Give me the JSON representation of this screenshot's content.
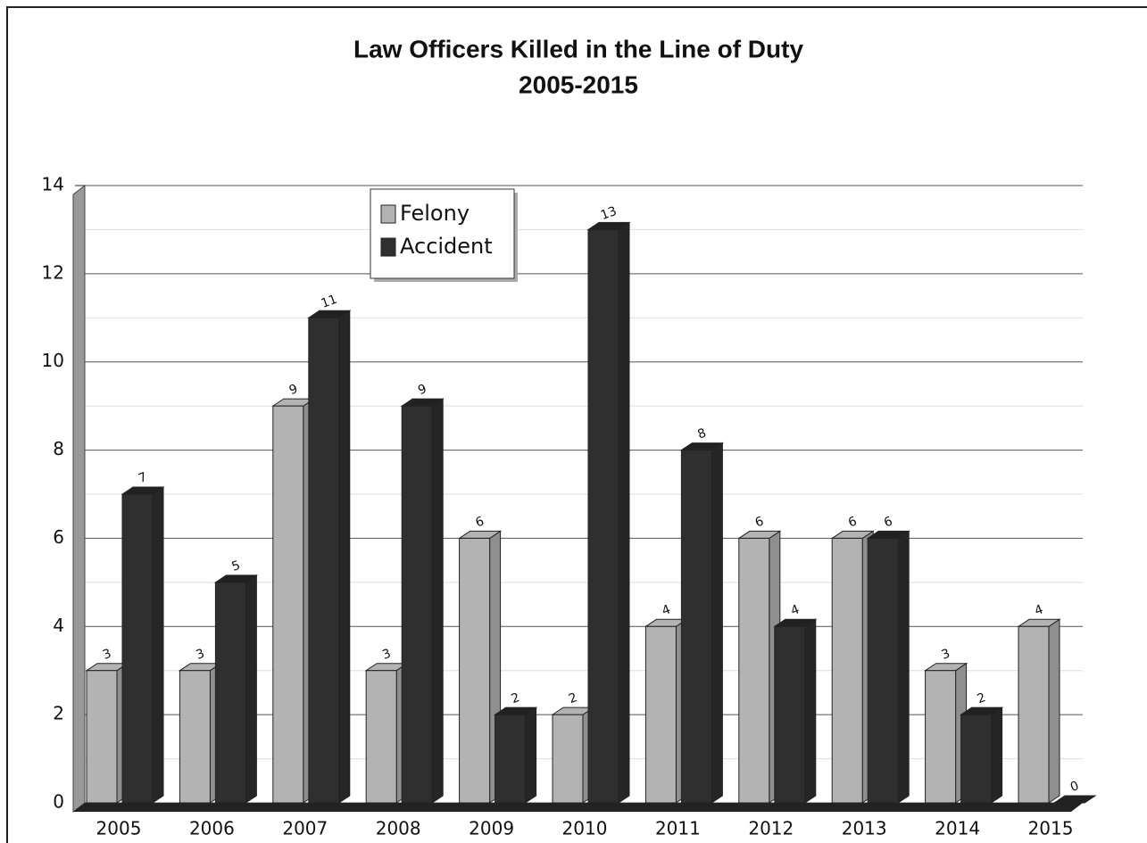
{
  "chart_data": {
    "type": "bar3d",
    "title": "Law Officers Killed in the Line of Duty",
    "subtitle": "2005-2015",
    "categories": [
      "2005",
      "2006",
      "2007",
      "2008",
      "2009",
      "2010",
      "2011",
      "2012",
      "2013",
      "2014",
      "2015"
    ],
    "series": [
      {
        "name": "Felony",
        "color": "#b3b3b3",
        "values": [
          3,
          3,
          9,
          3,
          6,
          2,
          4,
          6,
          6,
          3,
          4
        ]
      },
      {
        "name": "Accident",
        "color": "#2f2f2f",
        "values": [
          7,
          5,
          11,
          9,
          2,
          13,
          8,
          4,
          6,
          2,
          0
        ]
      }
    ],
    "ylim": [
      0,
      14
    ],
    "yticks": [
      0,
      2,
      4,
      6,
      8,
      10,
      12,
      14
    ],
    "minor_yticks": [
      1,
      3,
      5,
      7,
      9,
      11,
      13
    ],
    "grid": true,
    "legend": "top-left"
  }
}
